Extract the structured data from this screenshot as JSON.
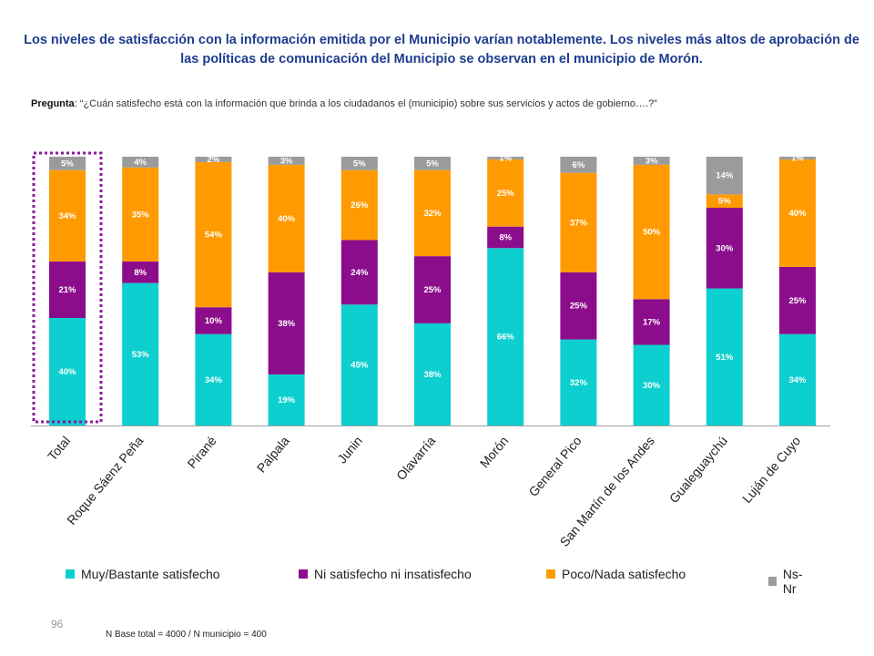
{
  "title": "Los niveles de satisfacción con la información emitida por el Municipio varían notablemente. Los niveles más altos de aprobación de las políticas de comunicación del Municipio se observan en el municipio de Morón.",
  "question": {
    "label": "Pregunta",
    "text": ": “¿Cuán satisfecho está con la información que brinda a los ciudadanos el (municipio) sobre sus servicios y actos de gobierno….?”"
  },
  "chart_data": {
    "type": "bar",
    "stacked": true,
    "highlighted_category": "Total",
    "categories": [
      "Total",
      "Roque Sáenz Peña",
      "Pirané",
      "Palpala",
      "Junin",
      "Olavarría",
      "Morón",
      "General Pico",
      "San Martín de los Andes",
      "Gualeguaychú",
      "Luján de Cuyo"
    ],
    "series": [
      {
        "name": "Muy/Bastante satisfecho",
        "color": "#0dcfcf",
        "values": [
          40,
          53,
          34,
          19,
          45,
          38,
          66,
          32,
          30,
          51,
          34
        ]
      },
      {
        "name": "Ni satisfecho ni insatisfecho",
        "color": "#8c0d8c",
        "values": [
          21,
          8,
          10,
          38,
          24,
          25,
          8,
          25,
          17,
          30,
          25
        ]
      },
      {
        "name": "Poco/Nada satisfecho",
        "color": "#ff9b00",
        "values": [
          34,
          35,
          54,
          40,
          26,
          32,
          25,
          37,
          50,
          5,
          40
        ]
      },
      {
        "name": "Ns-Nr",
        "color": "#9b9b9b",
        "values": [
          5,
          4,
          2,
          3,
          5,
          5,
          1,
          6,
          3,
          14,
          1
        ]
      }
    ],
    "ylim": [
      0,
      100
    ],
    "value_suffix": "%"
  },
  "page_number": "96",
  "base_note": "N Base total = 4000 / N municipio = 400"
}
